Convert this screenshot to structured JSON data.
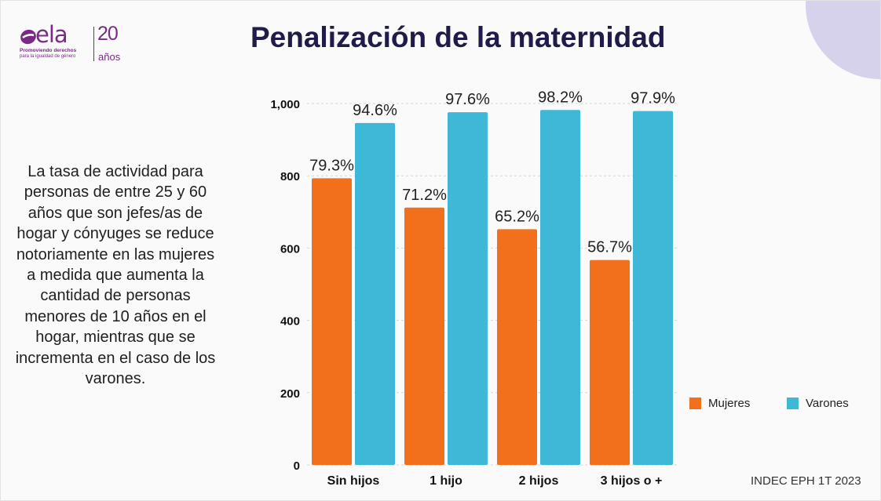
{
  "logo": {
    "name": "ela",
    "tagline1": "Promoviendo derechos",
    "tagline2": "para la igualdad de género",
    "anniversary_number": "20",
    "anniversary_word": "años"
  },
  "title": "Penalización de la maternidad",
  "description": "La tasa de actividad para personas de entre 25 y 60 años que son jefes/as de hogar y cónyuges se reduce notoriamente en las mujeres a medida que aumenta la cantidad de personas menores de 10 años en el hogar, mientras que se incrementa en el caso de los varones.",
  "source": "INDEC EPH 1T 2023",
  "colors": {
    "mujeres": "#f26f1b",
    "varones": "#3fb7d6",
    "title": "#201c4a",
    "brand": "#7a2a86",
    "decor": "#d6d2ec"
  },
  "chart_data": {
    "type": "bar",
    "title": "",
    "xlabel": "",
    "ylabel": "",
    "categories": [
      "Sin hijos",
      "1 hijo",
      "2 hijos",
      "3 hijos o +"
    ],
    "series": [
      {
        "name": "Mujeres",
        "values": [
          793,
          712,
          652,
          567
        ],
        "labels": [
          "79.3%",
          "71.2%",
          "65.2%",
          "56.7%"
        ]
      },
      {
        "name": "Varones",
        "values": [
          946,
          976,
          982,
          979
        ],
        "labels": [
          "94.6%",
          "97.6%",
          "98.2%",
          "97.9%"
        ]
      }
    ],
    "yticks": [
      0,
      200,
      400,
      600,
      800,
      1000
    ],
    "ytick_labels": [
      "0",
      "200",
      "400",
      "600",
      "800",
      "1,000"
    ],
    "ylim": [
      0,
      1000
    ],
    "grid": true,
    "legend_position": "right"
  }
}
